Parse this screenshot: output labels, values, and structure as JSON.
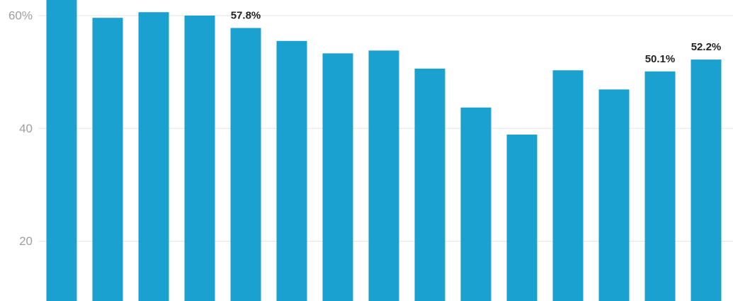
{
  "chart_data": {
    "type": "bar",
    "values": [
      63,
      59.6,
      60.6,
      60.0,
      57.8,
      55.5,
      53.3,
      53.8,
      50.6,
      43.7,
      38.9,
      50.3,
      46.9,
      50.1,
      52.2
    ],
    "value_labels": [
      null,
      null,
      null,
      null,
      "57.8%",
      null,
      null,
      null,
      null,
      null,
      null,
      null,
      null,
      "50.1%",
      "52.2%"
    ],
    "color": "#1ba1cf",
    "ylim": [
      9.4,
      62.76
    ],
    "yticks": [
      20,
      40,
      {
        "value": 60,
        "label": "60%"
      }
    ],
    "grid": true
  }
}
